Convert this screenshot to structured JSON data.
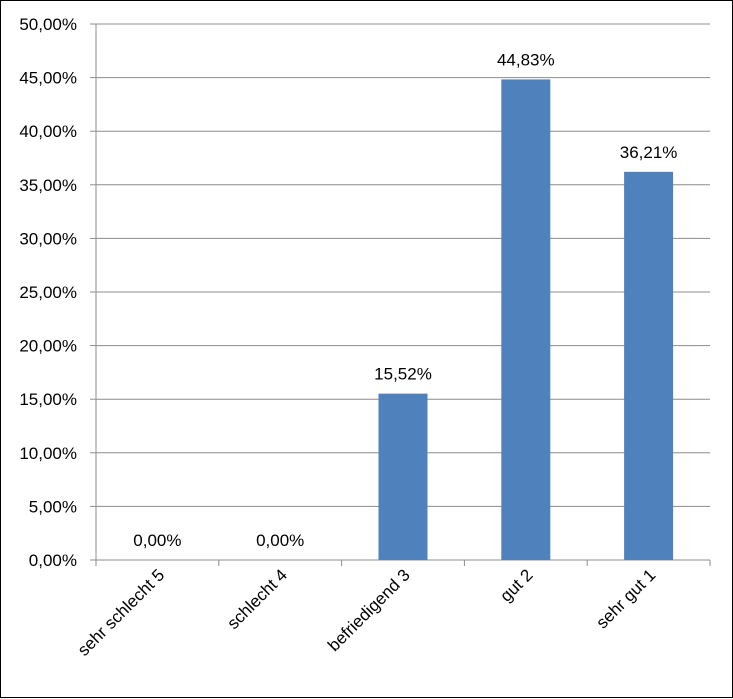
{
  "chart_data": {
    "type": "bar",
    "categories": [
      "sehr schlecht 5",
      "schlecht 4",
      "befriedigend 3",
      "gut 2",
      "sehr gut 1"
    ],
    "values": [
      0.0,
      0.0,
      15.52,
      44.83,
      36.21
    ],
    "data_labels": [
      "0,00%",
      "0,00%",
      "15,52%",
      "44,83%",
      "36,21%"
    ],
    "y_ticks": [
      0,
      5,
      10,
      15,
      20,
      25,
      30,
      35,
      40,
      45,
      50
    ],
    "y_tick_labels": [
      "0,00%",
      "5,00%",
      "10,00%",
      "15,00%",
      "20,00%",
      "25,00%",
      "30,00%",
      "35,00%",
      "40,00%",
      "45,00%",
      "50,00%"
    ],
    "ylim": [
      0,
      50
    ],
    "grid": true,
    "legend": "none",
    "bar_color": "#4f81bd",
    "grid_color": "#8c8c8c"
  }
}
